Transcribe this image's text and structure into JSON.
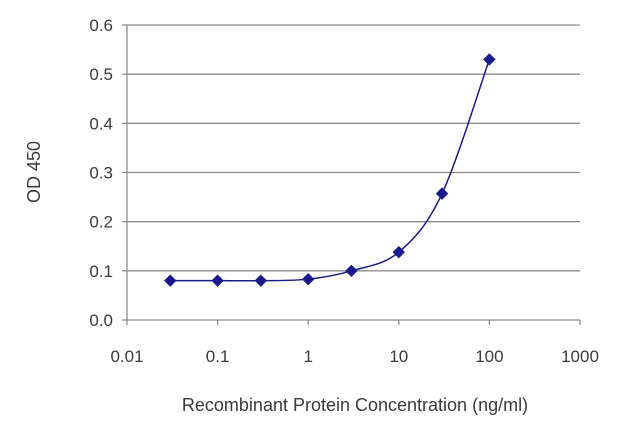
{
  "chart_data": {
    "type": "line",
    "title": "",
    "xlabel": "Recombinant Protein Concentration (ng/ml)",
    "ylabel": "OD 450",
    "xscale": "log",
    "xlim": [
      0.01,
      1000
    ],
    "ylim": [
      0.0,
      0.6
    ],
    "xticks": [
      0.01,
      0.1,
      1,
      10,
      100,
      1000
    ],
    "xtick_labels": [
      "0.01",
      "0.1",
      "1",
      "10",
      "100",
      "1000"
    ],
    "yticks": [
      0.0,
      0.1,
      0.2,
      0.3,
      0.4,
      0.5,
      0.6
    ],
    "ytick_labels": [
      "0.0",
      "0.1",
      "0.2",
      "0.3",
      "0.4",
      "0.5",
      "0.6"
    ],
    "grid": "horizontal",
    "legend": "none",
    "series": [
      {
        "color": "#1a1a8c",
        "marker": "diamond",
        "x": [
          0.03,
          0.1,
          0.3,
          1,
          3,
          10,
          30,
          100
        ],
        "y": [
          0.08,
          0.08,
          0.08,
          0.083,
          0.1,
          0.138,
          0.257,
          0.53
        ]
      }
    ]
  }
}
